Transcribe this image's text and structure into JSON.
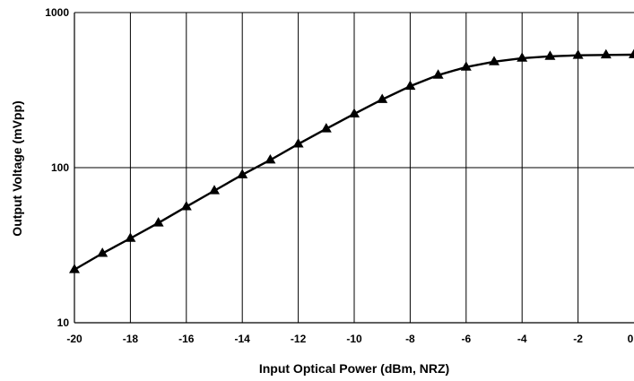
{
  "chart_data": {
    "type": "line",
    "title": "",
    "xlabel": "Input Optical Power (dBm, NRZ)",
    "ylabel": "Output Voltage (mVpp)",
    "xlim": [
      -20,
      0
    ],
    "ylim": [
      10,
      1000
    ],
    "yscale": "log",
    "grid": true,
    "legend": "none",
    "x_ticks": [
      "-20",
      "-18",
      "-16",
      "-14",
      "-12",
      "-10",
      "-8",
      "-6",
      "-4",
      "-2",
      "0"
    ],
    "y_ticks": [
      "10",
      "100",
      "1000"
    ],
    "marker": "triangle",
    "line_color": "#000000",
    "series": [
      {
        "x": [
          -20,
          -19,
          -18,
          -17,
          -16,
          -15,
          -14,
          -13,
          -12,
          -11,
          -10,
          -9,
          -8,
          -7,
          -6,
          -5,
          -4,
          -3,
          -2,
          -1,
          0
        ],
        "values": [
          22,
          28,
          35,
          44,
          56,
          71,
          90,
          112,
          142,
          178,
          222,
          275,
          335,
          395,
          445,
          482,
          508,
          522,
          530,
          533,
          535
        ]
      }
    ]
  }
}
